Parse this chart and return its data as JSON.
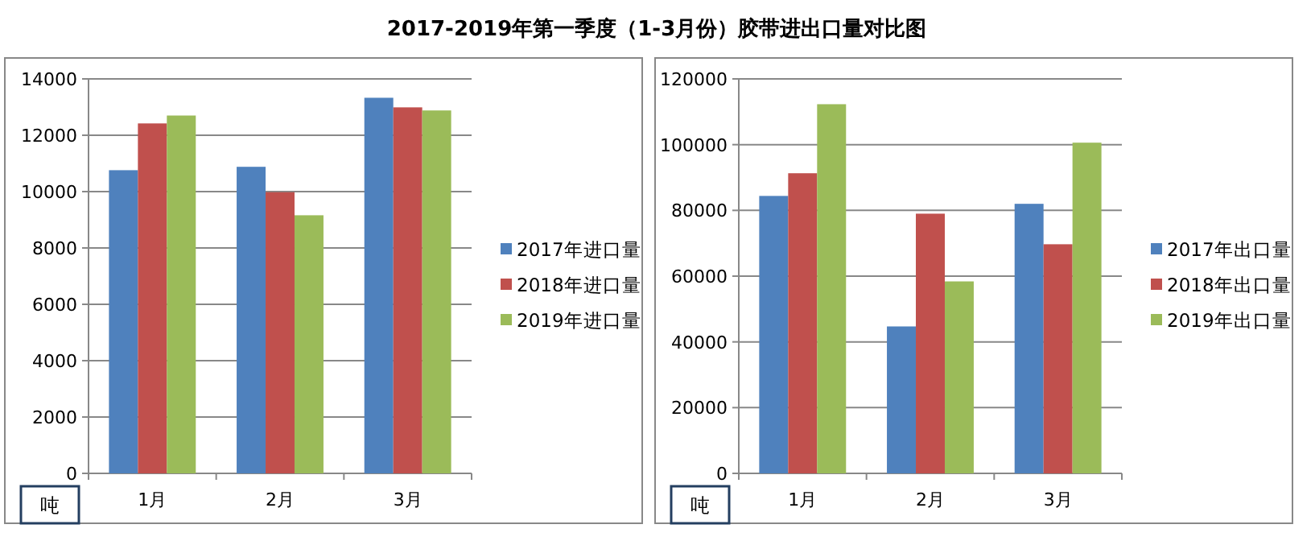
{
  "chart_data": [
    {
      "type": "bar",
      "title": "2017-2019年第一季度（1-3月份）胶带进出口量对比图",
      "ylabel": "吨",
      "categories": [
        "1月",
        "2月",
        "3月"
      ],
      "series": [
        {
          "name": "2017年进口量",
          "color": "#4f81bd",
          "values": [
            10760,
            10880,
            13330
          ]
        },
        {
          "name": "2018年进口量",
          "color": "#c0504d",
          "values": [
            12420,
            9980,
            12990
          ]
        },
        {
          "name": "2019年进口量",
          "color": "#9bbb59",
          "values": [
            12700,
            9160,
            12880
          ]
        }
      ],
      "ylim": [
        0,
        14000
      ],
      "yticks": [
        0,
        2000,
        4000,
        6000,
        8000,
        10000,
        12000,
        14000
      ],
      "grid": "y",
      "legend": "right"
    },
    {
      "type": "bar",
      "ylabel": "吨",
      "categories": [
        "1月",
        "2月",
        "3月"
      ],
      "series": [
        {
          "name": "2017年出口量",
          "color": "#4f81bd",
          "values": [
            84400,
            44700,
            82000
          ]
        },
        {
          "name": "2018年出口量",
          "color": "#c0504d",
          "values": [
            91300,
            79000,
            69700
          ]
        },
        {
          "name": "2019年出口量",
          "color": "#9bbb59",
          "values": [
            112300,
            58400,
            100600
          ]
        }
      ],
      "ylim": [
        0,
        120000
      ],
      "yticks": [
        0,
        20000,
        40000,
        60000,
        80000,
        100000,
        120000
      ],
      "grid": "y",
      "legend": "right"
    }
  ]
}
